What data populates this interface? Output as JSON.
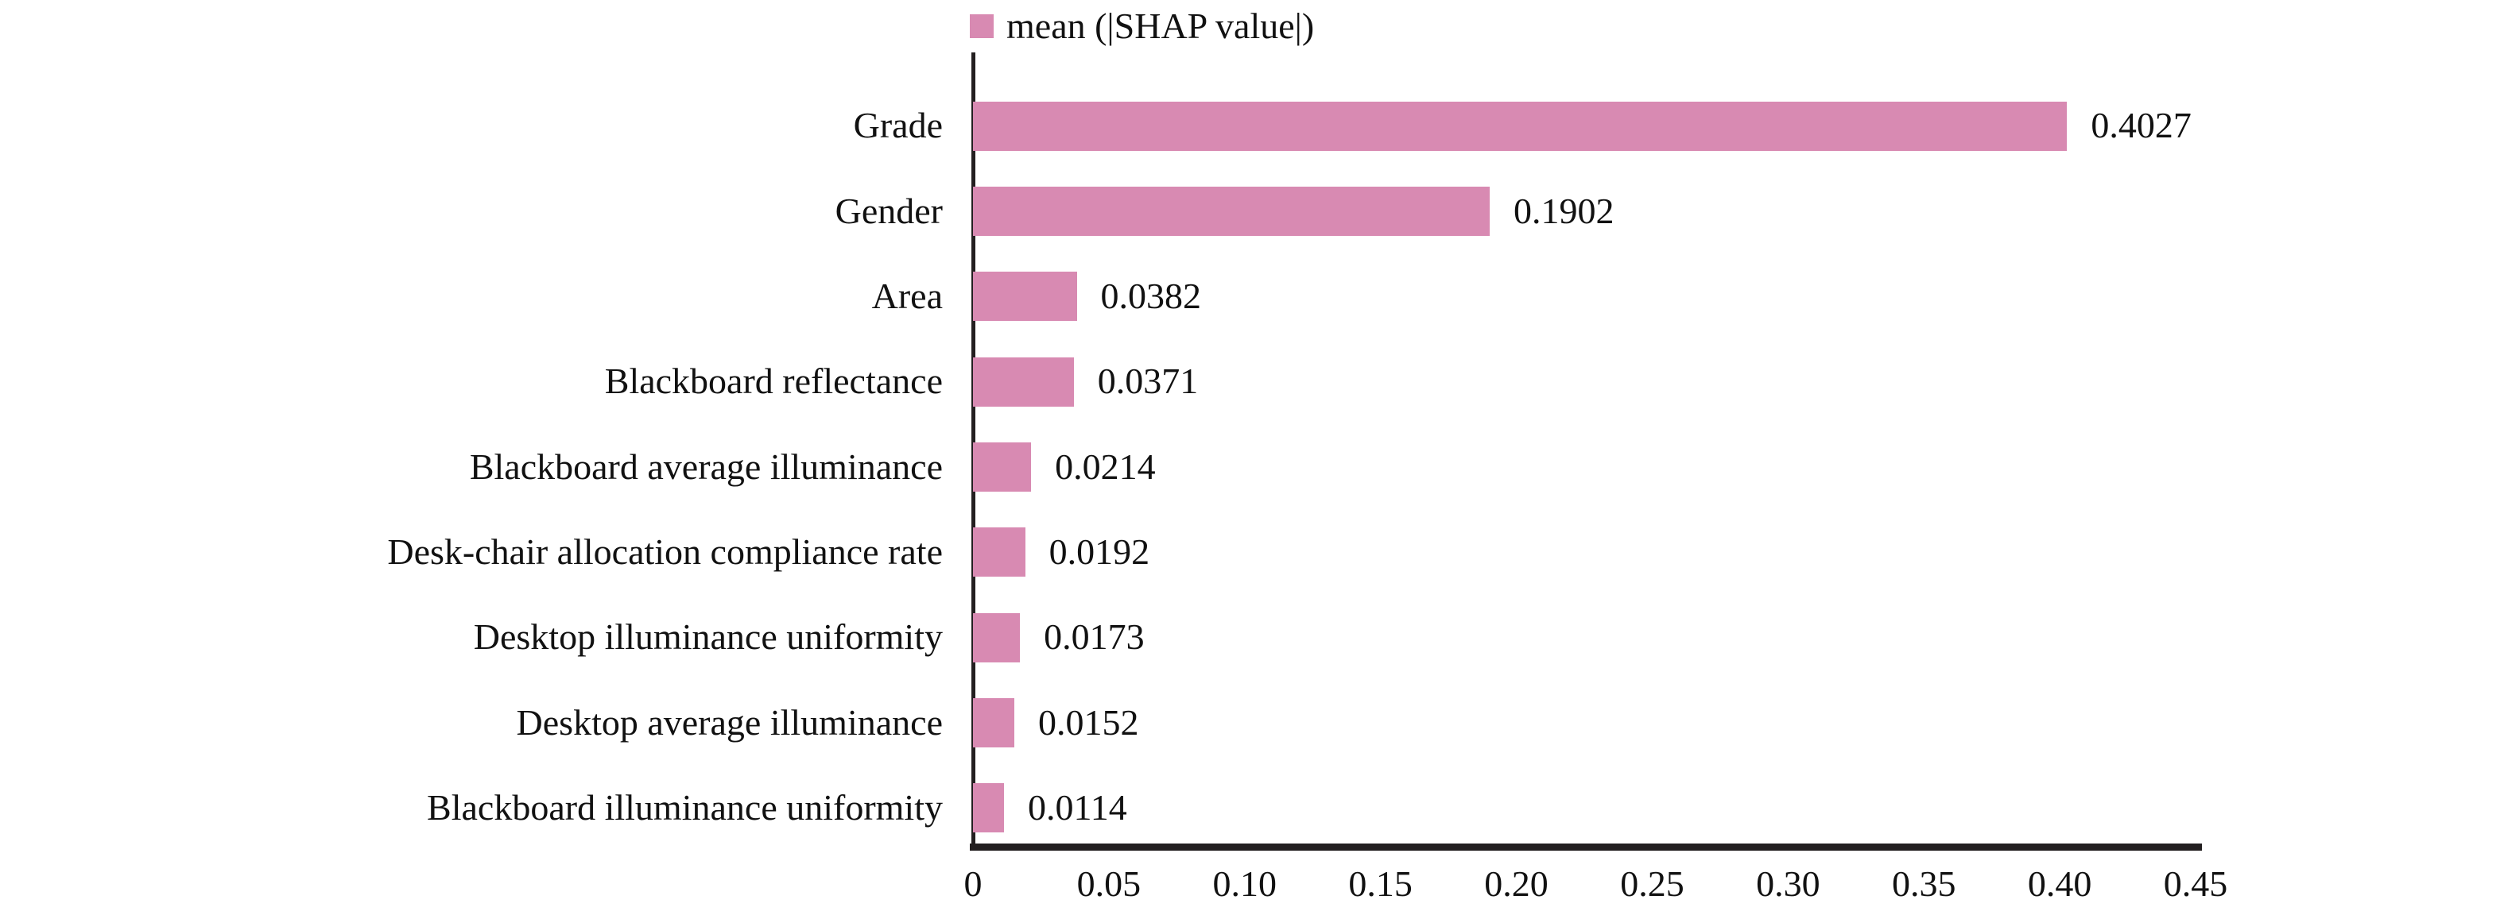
{
  "chart_data": {
    "type": "bar",
    "orientation": "horizontal",
    "title": "",
    "legend": [
      {
        "label": "mean (|SHAP value|)",
        "color": "#d88ab2"
      }
    ],
    "legend_position": "top-center",
    "categories": [
      "Grade",
      "Gender",
      "Area",
      "Blackboard reflectance",
      "Blackboard average illuminance",
      "Desk-chair allocation compliance rate",
      "Desktop illuminance uniformity",
      "Desktop average illuminance",
      "Blackboard illuminance uniformity"
    ],
    "values": [
      0.4027,
      0.1902,
      0.0382,
      0.0371,
      0.0214,
      0.0192,
      0.0173,
      0.0152,
      0.0114
    ],
    "value_labels": [
      "0.4027",
      "0.1902",
      "0.0382",
      "0.0371",
      "0.0214",
      "0.0192",
      "0.0173",
      "0.0152",
      "0.0114"
    ],
    "xlabel": "",
    "ylabel": "",
    "xlim": [
      0,
      0.45
    ],
    "xticks": [
      "0",
      "0.05",
      "0.10",
      "0.15",
      "0.20",
      "0.25",
      "0.30",
      "0.35",
      "0.40",
      "0.45"
    ],
    "grid": false,
    "bar_color": "#d88ab2",
    "axis_color": "#231f20",
    "text_color": "#111111"
  }
}
